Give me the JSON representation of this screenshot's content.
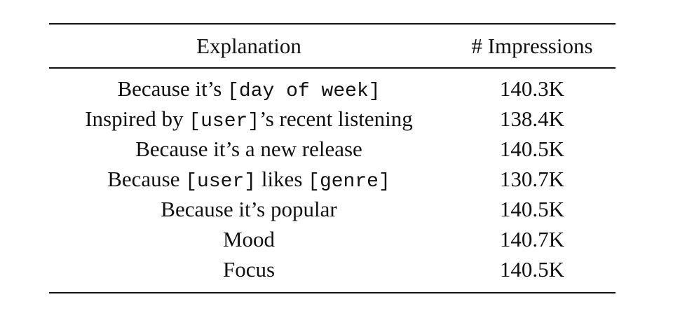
{
  "table": {
    "headers": {
      "explanation": "Explanation",
      "impressions": "# Impressions"
    },
    "rows": [
      {
        "explanation": [
          {
            "text": "Because it’s ",
            "mono": false
          },
          {
            "text": "[day of week]",
            "mono": true
          }
        ],
        "impressions": "140.3K"
      },
      {
        "explanation": [
          {
            "text": "Inspired by ",
            "mono": false
          },
          {
            "text": "[user]",
            "mono": true
          },
          {
            "text": "’s recent listening",
            "mono": false
          }
        ],
        "impressions": "138.4K"
      },
      {
        "explanation": [
          {
            "text": "Because it’s a new release",
            "mono": false
          }
        ],
        "impressions": "140.5K"
      },
      {
        "explanation": [
          {
            "text": "Because ",
            "mono": false
          },
          {
            "text": "[user]",
            "mono": true
          },
          {
            "text": " likes ",
            "mono": false
          },
          {
            "text": "[genre]",
            "mono": true
          }
        ],
        "impressions": "130.7K"
      },
      {
        "explanation": [
          {
            "text": "Because it’s popular",
            "mono": false
          }
        ],
        "impressions": "140.5K"
      },
      {
        "explanation": [
          {
            "text": "Mood",
            "mono": false
          }
        ],
        "impressions": "140.7K"
      },
      {
        "explanation": [
          {
            "text": "Focus",
            "mono": false
          }
        ],
        "impressions": "140.5K"
      }
    ]
  }
}
